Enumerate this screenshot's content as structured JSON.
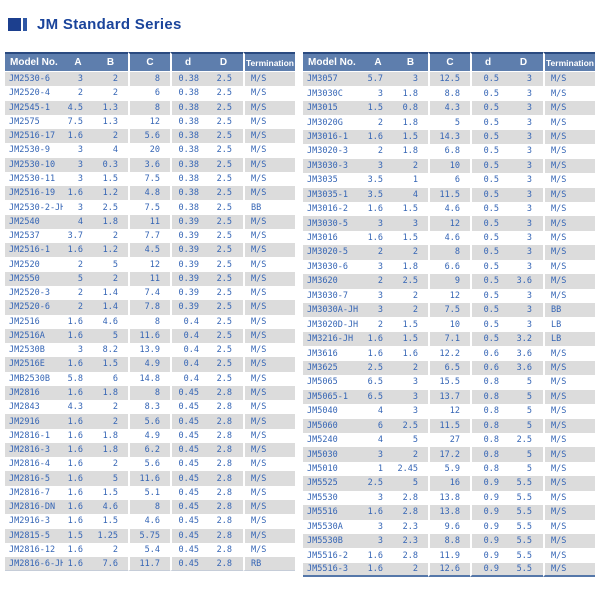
{
  "header": {
    "title": "JM Standard Series"
  },
  "colors": {
    "title_text": "#1a449b",
    "title_icon": "#1c3f8e",
    "header_bg": "#5e7ead",
    "header_top_border": "#2a4a80",
    "row_stripe": "#dcdcdc",
    "cell_text": "#3565b5"
  },
  "table": {
    "columns": [
      "Model No.",
      "A",
      "B",
      "C",
      "d",
      "D",
      "Termination"
    ],
    "left_rows": [
      [
        "JM2530-6",
        "3",
        "2",
        "8",
        "0.38",
        "2.5",
        "M/S"
      ],
      [
        "JM2520-4",
        "2",
        "2",
        "6",
        "0.38",
        "2.5",
        "M/S"
      ],
      [
        "JM2545-1",
        "4.5",
        "1.3",
        "8",
        "0.38",
        "2.5",
        "M/S"
      ],
      [
        "JM2575",
        "7.5",
        "1.3",
        "12",
        "0.38",
        "2.5",
        "M/S"
      ],
      [
        "JM2516-17",
        "1.6",
        "2",
        "5.6",
        "0.38",
        "2.5",
        "M/S"
      ],
      [
        "JM2530-9",
        "3",
        "4",
        "20",
        "0.38",
        "2.5",
        "M/S"
      ],
      [
        "JM2530-10",
        "3",
        "0.3",
        "3.6",
        "0.38",
        "2.5",
        "M/S"
      ],
      [
        "JM2530-11",
        "3",
        "1.5",
        "7.5",
        "0.38",
        "2.5",
        "M/S"
      ],
      [
        "JM2516-19",
        "1.6",
        "1.2",
        "4.8",
        "0.38",
        "2.5",
        "M/S"
      ],
      [
        "JM2530-2-JH",
        "3",
        "2.5",
        "7.5",
        "0.38",
        "2.5",
        "BB"
      ],
      [
        "JM2540",
        "4",
        "1.8",
        "11",
        "0.39",
        "2.5",
        "M/S"
      ],
      [
        "JM2537",
        "3.7",
        "2",
        "7.7",
        "0.39",
        "2.5",
        "M/S"
      ],
      [
        "JM2516-1",
        "1.6",
        "1.2",
        "4.5",
        "0.39",
        "2.5",
        "M/S"
      ],
      [
        "JM2520",
        "2",
        "5",
        "12",
        "0.39",
        "2.5",
        "M/S"
      ],
      [
        "JM2550",
        "5",
        "2",
        "11",
        "0.39",
        "2.5",
        "M/S"
      ],
      [
        "JM2520-3",
        "2",
        "1.4",
        "7.4",
        "0.39",
        "2.5",
        "M/S"
      ],
      [
        "JM2520-6",
        "2",
        "1.4",
        "7.8",
        "0.39",
        "2.5",
        "M/S"
      ],
      [
        "JM2516",
        "1.6",
        "4.6",
        "8",
        "0.4",
        "2.5",
        "M/S"
      ],
      [
        "JM2516A",
        "1.6",
        "5",
        "11.6",
        "0.4",
        "2.5",
        "M/S"
      ],
      [
        "JM2530B",
        "3",
        "8.2",
        "13.9",
        "0.4",
        "2.5",
        "M/S"
      ],
      [
        "JM2516E",
        "1.6",
        "1.5",
        "4.9",
        "0.4",
        "2.5",
        "M/S"
      ],
      [
        "JMB2530B",
        "5.8",
        "6",
        "14.8",
        "0.4",
        "2.5",
        "M/S"
      ],
      [
        "JM2816",
        "1.6",
        "1.8",
        "8",
        "0.45",
        "2.8",
        "M/S"
      ],
      [
        "JM2843",
        "4.3",
        "2",
        "8.3",
        "0.45",
        "2.8",
        "M/S"
      ],
      [
        "JM2916",
        "1.6",
        "2",
        "5.6",
        "0.45",
        "2.8",
        "M/S"
      ],
      [
        "JM2816-1",
        "1.6",
        "1.8",
        "4.9",
        "0.45",
        "2.8",
        "M/S"
      ],
      [
        "JM2816-3",
        "1.6",
        "1.8",
        "6.2",
        "0.45",
        "2.8",
        "M/S"
      ],
      [
        "JM2816-4",
        "1.6",
        "2",
        "5.6",
        "0.45",
        "2.8",
        "M/S"
      ],
      [
        "JM2816-5",
        "1.6",
        "5",
        "11.6",
        "0.45",
        "2.8",
        "M/S"
      ],
      [
        "JM2816-7",
        "1.6",
        "1.5",
        "5.1",
        "0.45",
        "2.8",
        "M/S"
      ],
      [
        "JM2816-DN",
        "1.6",
        "4.6",
        "8",
        "0.45",
        "2.8",
        "M/S"
      ],
      [
        "JM2916-3",
        "1.6",
        "1.5",
        "4.6",
        "0.45",
        "2.8",
        "M/S"
      ],
      [
        "JM2815-5",
        "1.5",
        "1.25",
        "5.75",
        "0.45",
        "2.8",
        "M/S"
      ],
      [
        "JM2816-12",
        "1.6",
        "2",
        "5.4",
        "0.45",
        "2.8",
        "M/S"
      ],
      [
        "JM2816-6-JH",
        "1.6",
        "7.6",
        "11.7",
        "0.45",
        "2.8",
        "RB"
      ]
    ],
    "right_rows": [
      [
        "JM3057",
        "5.7",
        "3",
        "12.5",
        "0.5",
        "3",
        "M/S"
      ],
      [
        "JM3030C",
        "3",
        "1.8",
        "8.8",
        "0.5",
        "3",
        "M/S"
      ],
      [
        "JM3015",
        "1.5",
        "0.8",
        "4.3",
        "0.5",
        "3",
        "M/S"
      ],
      [
        "JM3020G",
        "2",
        "1.8",
        "5",
        "0.5",
        "3",
        "M/S"
      ],
      [
        "JM3016-1",
        "1.6",
        "1.5",
        "14.3",
        "0.5",
        "3",
        "M/S"
      ],
      [
        "JM3020-3",
        "2",
        "1.8",
        "6.8",
        "0.5",
        "3",
        "M/S"
      ],
      [
        "JM3030-3",
        "3",
        "2",
        "10",
        "0.5",
        "3",
        "M/S"
      ],
      [
        "JM3035",
        "3.5",
        "1",
        "6",
        "0.5",
        "3",
        "M/S"
      ],
      [
        "JM3035-1",
        "3.5",
        "4",
        "11.5",
        "0.5",
        "3",
        "M/S"
      ],
      [
        "JM3016-2",
        "1.6",
        "1.5",
        "4.6",
        "0.5",
        "3",
        "M/S"
      ],
      [
        "JM3030-5",
        "3",
        "3",
        "12",
        "0.5",
        "3",
        "M/S"
      ],
      [
        "JM3016",
        "1.6",
        "1.5",
        "4.6",
        "0.5",
        "3",
        "M/S"
      ],
      [
        "JM3020-5",
        "2",
        "2",
        "8",
        "0.5",
        "3",
        "M/S"
      ],
      [
        "JM3030-6",
        "3",
        "1.8",
        "6.6",
        "0.5",
        "3",
        "M/S"
      ],
      [
        "JM3620",
        "2",
        "2.5",
        "9",
        "0.5",
        "3.6",
        "M/S"
      ],
      [
        "JM3030-7",
        "3",
        "2",
        "12",
        "0.5",
        "3",
        "M/S"
      ],
      [
        "JM3030A-JH",
        "3",
        "2",
        "7.5",
        "0.5",
        "3",
        "BB"
      ],
      [
        "JM3020D-JH",
        "2",
        "1.5",
        "10",
        "0.5",
        "3",
        "LB"
      ],
      [
        "JM3216-JH",
        "1.6",
        "1.5",
        "7.1",
        "0.5",
        "3.2",
        "LB"
      ],
      [
        "JM3616",
        "1.6",
        "1.6",
        "12.2",
        "0.6",
        "3.6",
        "M/S"
      ],
      [
        "JM3625",
        "2.5",
        "2",
        "6.5",
        "0.6",
        "3.6",
        "M/S"
      ],
      [
        "JM5065",
        "6.5",
        "3",
        "15.5",
        "0.8",
        "5",
        "M/S"
      ],
      [
        "JM5065-1",
        "6.5",
        "3",
        "13.7",
        "0.8",
        "5",
        "M/S"
      ],
      [
        "JM5040",
        "4",
        "3",
        "12",
        "0.8",
        "5",
        "M/S"
      ],
      [
        "JM5060",
        "6",
        "2.5",
        "11.5",
        "0.8",
        "5",
        "M/S"
      ],
      [
        "JM5240",
        "4",
        "5",
        "27",
        "0.8",
        "2.5",
        "M/S"
      ],
      [
        "JM5030",
        "3",
        "2",
        "17.2",
        "0.8",
        "5",
        "M/S"
      ],
      [
        "JM5010",
        "1",
        "2.45",
        "5.9",
        "0.8",
        "5",
        "M/S"
      ],
      [
        "JM5525",
        "2.5",
        "5",
        "16",
        "0.9",
        "5.5",
        "M/S"
      ],
      [
        "JM5530",
        "3",
        "2.8",
        "13.8",
        "0.9",
        "5.5",
        "M/S"
      ],
      [
        "JM5516",
        "1.6",
        "2.8",
        "13.8",
        "0.9",
        "5.5",
        "M/S"
      ],
      [
        "JM5530A",
        "3",
        "2.3",
        "9.6",
        "0.9",
        "5.5",
        "M/S"
      ],
      [
        "JM5530B",
        "3",
        "2.3",
        "8.8",
        "0.9",
        "5.5",
        "M/S"
      ],
      [
        "JM5516-2",
        "1.6",
        "2.8",
        "11.9",
        "0.9",
        "5.5",
        "M/S"
      ],
      [
        "JM5516-3",
        "1.6",
        "2",
        "12.6",
        "0.9",
        "5.5",
        "M/S"
      ]
    ]
  }
}
